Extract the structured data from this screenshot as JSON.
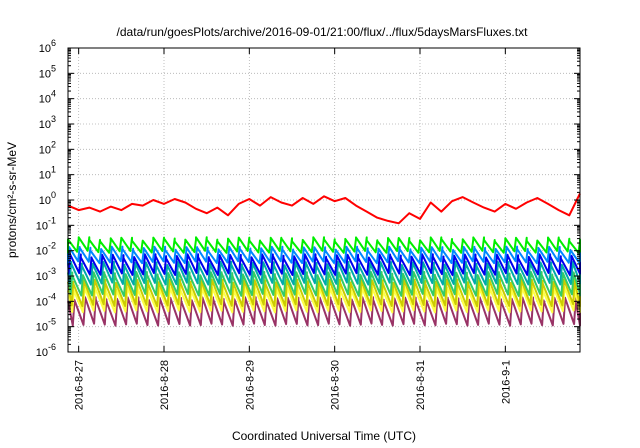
{
  "chart_data": {
    "type": "line",
    "title": "/data/run/goesPlots/archive/2016-09-01/21:00/flux/../flux/5daysMarsFluxes.txt",
    "xlabel": "Coordinated Universal Time (UTC)",
    "ylabel": "protons/cm²-s-sr-MeV",
    "yscale": "log",
    "ylim": [
      1e-06,
      1000000.0
    ],
    "xlim": [
      "2016-08-26T21:00",
      "2016-09-01T21:00"
    ],
    "grid": true,
    "legend": "none",
    "y_ticks": [
      {
        "base": "10",
        "exp": "-6"
      },
      {
        "base": "10",
        "exp": "-5"
      },
      {
        "base": "10",
        "exp": "-4"
      },
      {
        "base": "10",
        "exp": "-3"
      },
      {
        "base": "10",
        "exp": "-2"
      },
      {
        "base": "10",
        "exp": "-1"
      },
      {
        "base": "10",
        "exp": "0"
      },
      {
        "base": "10",
        "exp": "1"
      },
      {
        "base": "10",
        "exp": "2"
      },
      {
        "base": "10",
        "exp": "3"
      },
      {
        "base": "10",
        "exp": "4"
      },
      {
        "base": "10",
        "exp": "5"
      },
      {
        "base": "10",
        "exp": "6"
      }
    ],
    "x_ticks": [
      "2016-8-27",
      "2016-8-28",
      "2016-8-29",
      "2016-8-30",
      "2016-8-31",
      "2016-9-1"
    ],
    "series": [
      {
        "color": "#ff0000",
        "x": [
          "2016-08-26T21:00",
          "2016-08-27T00:00",
          "2016-08-27T03:00",
          "2016-08-27T06:00",
          "2016-08-27T09:00",
          "2016-08-27T12:00",
          "2016-08-27T15:00",
          "2016-08-27T18:00",
          "2016-08-27T21:00",
          "2016-08-28T00:00",
          "2016-08-28T03:00",
          "2016-08-28T06:00",
          "2016-08-28T09:00",
          "2016-08-28T12:00",
          "2016-08-28T15:00",
          "2016-08-28T18:00",
          "2016-08-28T21:00",
          "2016-08-29T00:00",
          "2016-08-29T03:00",
          "2016-08-29T06:00",
          "2016-08-29T09:00",
          "2016-08-29T12:00",
          "2016-08-29T15:00",
          "2016-08-29T18:00",
          "2016-08-29T21:00",
          "2016-08-30T00:00",
          "2016-08-30T03:00",
          "2016-08-30T06:00",
          "2016-08-30T09:00",
          "2016-08-30T12:00",
          "2016-08-30T15:00",
          "2016-08-30T18:00",
          "2016-08-30T21:00",
          "2016-08-31T00:00",
          "2016-08-31T03:00",
          "2016-08-31T06:00",
          "2016-08-31T09:00",
          "2016-08-31T12:00",
          "2016-08-31T15:00",
          "2016-08-31T18:00",
          "2016-08-31T21:00",
          "2016-09-01T00:00",
          "2016-09-01T03:00",
          "2016-09-01T06:00",
          "2016-09-01T09:00",
          "2016-09-01T12:00",
          "2016-09-01T15:00",
          "2016-09-01T18:00",
          "2016-09-01T21:00"
        ],
        "y": [
          0.6,
          0.4,
          0.5,
          0.35,
          0.55,
          0.4,
          0.7,
          0.6,
          1.0,
          0.7,
          1.1,
          0.8,
          0.45,
          0.3,
          0.5,
          0.25,
          0.7,
          1.1,
          0.6,
          1.3,
          0.8,
          0.6,
          1.2,
          0.7,
          1.4,
          0.9,
          1.2,
          0.6,
          0.35,
          0.2,
          0.15,
          0.12,
          0.3,
          0.18,
          0.8,
          0.35,
          0.9,
          1.3,
          0.8,
          0.5,
          0.35,
          0.7,
          0.45,
          0.8,
          1.2,
          0.7,
          0.4,
          0.25,
          1.8
        ]
      },
      {
        "color": "#00ee00",
        "pattern": "sawtooth",
        "peak": 0.028,
        "trough": 0.009,
        "cycles": 48,
        "phase": 0.0
      },
      {
        "color": "#0088ff",
        "pattern": "sawtooth",
        "peak": 0.012,
        "trough": 0.0035,
        "cycles": 48,
        "phase": 0.1
      },
      {
        "color": "#0000ee",
        "pattern": "sawtooth",
        "peak": 0.006,
        "trough": 0.0012,
        "cycles": 48,
        "phase": 0.2
      },
      {
        "color": "#00aaaa",
        "pattern": "sawtooth",
        "peak": 0.003,
        "trough": 0.0005,
        "cycles": 48,
        "phase": 0.3
      },
      {
        "color": "#33cc66",
        "pattern": "sawtooth",
        "peak": 0.0012,
        "trough": 0.00018,
        "cycles": 48,
        "phase": 0.4
      },
      {
        "color": "#cccc00",
        "pattern": "sawtooth",
        "peak": 0.0006,
        "trough": 7e-05,
        "cycles": 48,
        "phase": 0.5
      },
      {
        "color": "#ffff44",
        "pattern": "sawtooth",
        "peak": 0.0003,
        "trough": 4e-05,
        "cycles": 48,
        "phase": 0.55
      },
      {
        "color": "#993366",
        "pattern": "sawtooth",
        "peak": 0.00012,
        "trough": 1.2e-05,
        "cycles": 48,
        "phase": 0.6
      }
    ]
  }
}
